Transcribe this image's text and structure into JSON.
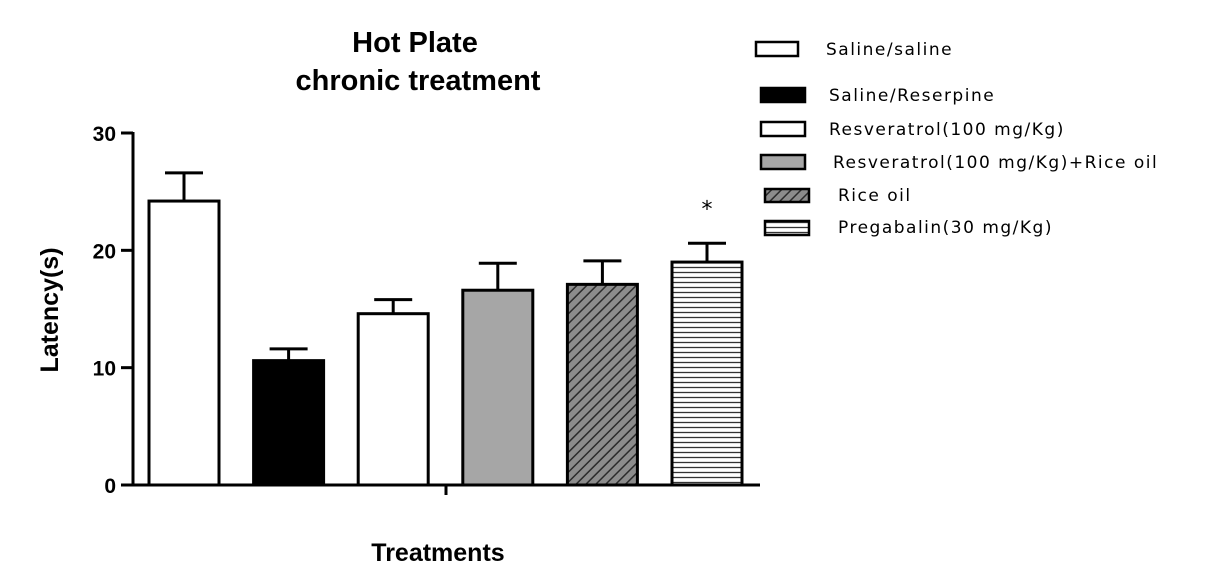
{
  "chart_data": {
    "type": "bar",
    "title": "Hot Plate",
    "subtitle": "chronic treatment",
    "xlabel": "Treatments",
    "ylabel": "Latency(s)",
    "ylim": [
      0,
      30
    ],
    "yticks": [
      0,
      10,
      20,
      30
    ],
    "grid": false,
    "legend_position": "right",
    "series": [
      {
        "name": "Saline/saline",
        "value": 24.2,
        "error": 2.4,
        "fill": "white",
        "pattern": "none",
        "annotation": ""
      },
      {
        "name": "Saline/Reserpine",
        "value": 10.6,
        "error": 1.0,
        "fill": "#000000",
        "pattern": "none",
        "annotation": ""
      },
      {
        "name": "Resveratrol(100 mg/Kg)",
        "value": 14.6,
        "error": 1.2,
        "fill": "white",
        "pattern": "none",
        "annotation": ""
      },
      {
        "name": "Resveratrol(100 mg/Kg)+Rice oil",
        "value": 16.6,
        "error": 2.3,
        "fill": "#a6a6a6",
        "pattern": "none",
        "annotation": ""
      },
      {
        "name": "Rice oil",
        "value": 17.1,
        "error": 2.0,
        "fill": "#8c8c8c",
        "pattern": "diagonal",
        "annotation": ""
      },
      {
        "name": "Pregabalin(30 mg/Kg)",
        "value": 19.0,
        "error": 1.6,
        "fill": "white",
        "pattern": "horizontal",
        "annotation": "*"
      }
    ]
  }
}
